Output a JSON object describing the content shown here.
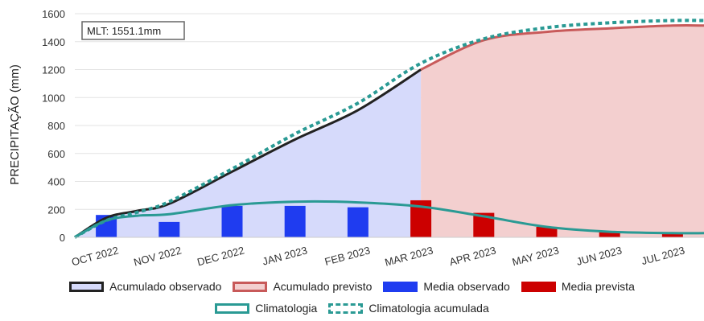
{
  "chart_data": {
    "type": "line",
    "title": "",
    "ylabel": "PRECIPITAÇÃO (mm)",
    "xlabel": "",
    "ylim": [
      0,
      1600
    ],
    "yticks": [
      0,
      200,
      400,
      600,
      800,
      1000,
      1200,
      1400,
      1600
    ],
    "annotation": "MLT: 1551.1mm",
    "categories": [
      "OCT 2022",
      "NOV 2022",
      "DEC 2022",
      "JAN 2023",
      "FEB 2023",
      "MAR 2023",
      "APR 2023",
      "MAY 2023",
      "JUN 2023",
      "JUL 2023"
    ],
    "series": [
      {
        "name": "Acumulado observado",
        "kind": "area",
        "color": "#222222",
        "fill": "#d6dafb",
        "x": [
          -0.5,
          0,
          0.5,
          1,
          2,
          3,
          4,
          5
        ],
        "values": [
          0,
          140,
          190,
          240,
          470,
          700,
          910,
          1200
        ]
      },
      {
        "name": "Acumulado previsto",
        "kind": "area",
        "color": "#c85a5a",
        "fill": "#f3cfcf",
        "x": [
          5,
          6,
          7,
          8,
          9,
          9.5
        ],
        "values": [
          1200,
          1410,
          1470,
          1495,
          1515,
          1515
        ]
      },
      {
        "name": "Media observado",
        "kind": "bar",
        "color": "#1f3cf0",
        "x": [
          0,
          1,
          2,
          3,
          4
        ],
        "values": [
          160,
          110,
          225,
          225,
          215
        ]
      },
      {
        "name": "Media prevista",
        "kind": "bar",
        "color": "#cc0000",
        "x": [
          5,
          6,
          7,
          8,
          9
        ],
        "values": [
          265,
          175,
          75,
          40,
          25
        ]
      },
      {
        "name": "Climatologia",
        "kind": "line",
        "color": "#2a9a94",
        "x": [
          -0.5,
          0,
          0.5,
          1,
          2,
          3,
          4,
          5,
          6,
          7,
          8,
          9,
          9.5
        ],
        "values": [
          0,
          120,
          155,
          165,
          230,
          255,
          250,
          220,
          150,
          75,
          40,
          30,
          30
        ]
      },
      {
        "name": "Climatologia acumulada",
        "kind": "line",
        "dashed": true,
        "color": "#2a9a94",
        "x": [
          -0.5,
          0,
          0.5,
          1,
          2,
          3,
          4,
          5,
          6,
          7,
          8,
          9,
          9.5
        ],
        "values": [
          0,
          120,
          180,
          255,
          490,
          740,
          960,
          1245,
          1420,
          1500,
          1535,
          1551,
          1551
        ]
      }
    ],
    "legend": [
      "Acumulado observado",
      "Acumulado previsto",
      "Media observado",
      "Media prevista",
      "Climatologia",
      "Climatologia acumulada"
    ],
    "legend_position": "bottom",
    "grid": true
  }
}
